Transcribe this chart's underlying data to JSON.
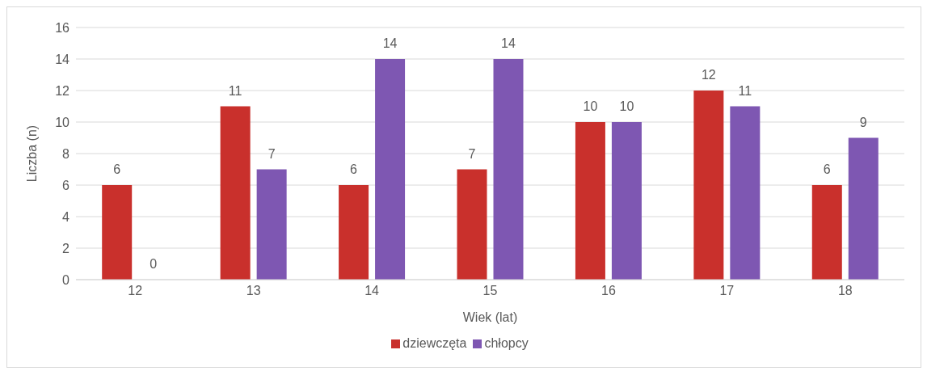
{
  "chart_data": {
    "type": "bar",
    "xlabel": "Wiek (lat)",
    "ylabel": "Liczba (n)",
    "categories": [
      "12",
      "13",
      "14",
      "15",
      "16",
      "17",
      "18"
    ],
    "series": [
      {
        "name": "dziewczęta",
        "color": "#c9302c",
        "values": [
          6,
          11,
          6,
          7,
          10,
          12,
          6
        ]
      },
      {
        "name": "chłopcy",
        "color": "#7e57b2",
        "values": [
          0,
          7,
          14,
          14,
          10,
          11,
          9
        ]
      }
    ],
    "ylim": [
      0,
      16
    ],
    "yticks": [
      0,
      2,
      4,
      6,
      8,
      10,
      12,
      14,
      16
    ],
    "grid": "y",
    "legend": "bottom",
    "data_labels": true
  }
}
